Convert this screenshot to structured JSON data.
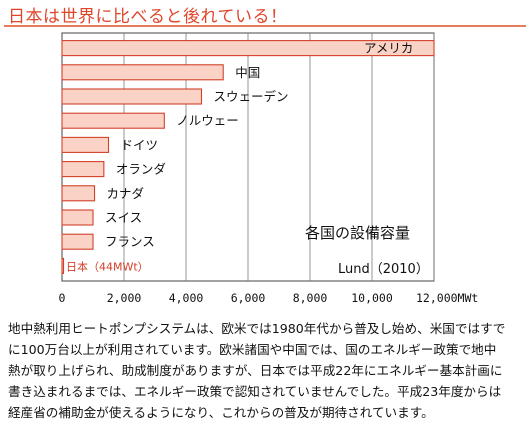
{
  "headline": "日本は世界に比べると後れている！",
  "colors": {
    "accent": "#e0452a",
    "bar_fill": "#fbd3c6",
    "bar_stroke": "#d2402a",
    "label_japan": "#d2402a",
    "gridline": "#7a7a7a"
  },
  "chart_data": {
    "type": "bar",
    "orientation": "horizontal",
    "categories": [
      "アメリカ",
      "中国",
      "スウェーデン",
      "ノルウェー",
      "ドイツ",
      "オランダ",
      "カナダ",
      "スイス",
      "フランス",
      "日本（44MWt）"
    ],
    "values": [
      12000,
      5200,
      4500,
      3300,
      1500,
      1350,
      1050,
      1000,
      1000,
      44
    ],
    "annotation_title": "各国の設備容量",
    "source": "Lund（2010）",
    "xticks": [
      "0",
      "2,000",
      "4,000",
      "6,000",
      "8,000",
      "10,000",
      "12,000MWt"
    ],
    "xlim": [
      0,
      12000
    ],
    "grid": "vertical"
  },
  "body_lines": [
    "地中熱利用ヒートポンプシステムは、欧米では1980年代から普及し始め、米国ではすで",
    "に100万台以上が利用されています。欧米諸国や中国では、国のエネルギー政策で地中",
    "熱が取り上げられ、助成制度がありますが、日本では平成22年にエネルギー基本計画に",
    "書き込まれるまでは、エネルギー政策で認知されていませんでした。平成23年度からは",
    "経産省の補助金が使えるようになり、これからの普及が期待されています。"
  ]
}
